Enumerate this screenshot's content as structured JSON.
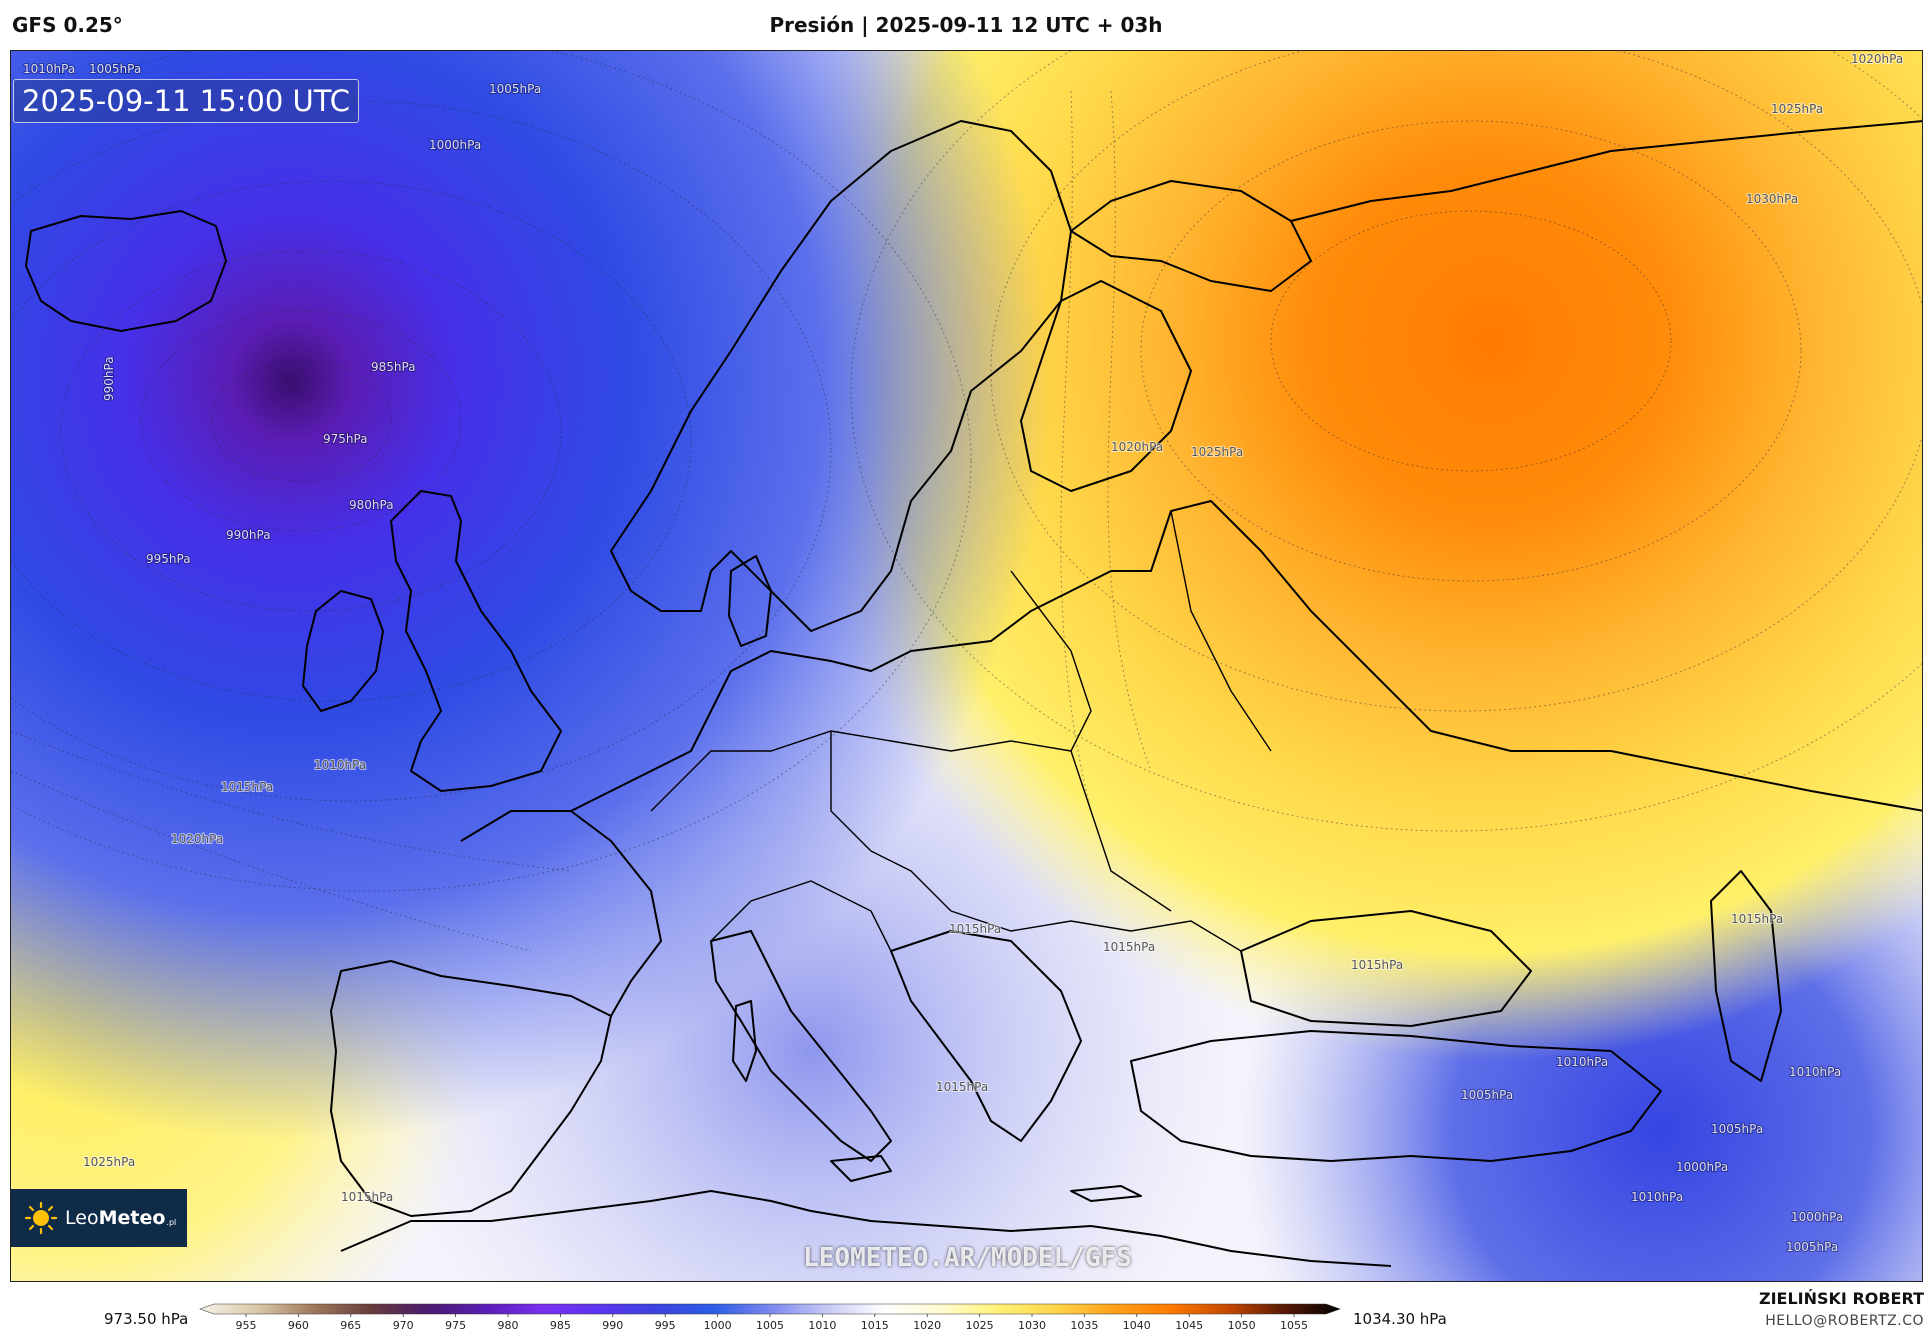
{
  "header": {
    "model": "GFS 0.25°",
    "title": "Presión | 2025-09-11 12 UTC + 03h"
  },
  "map": {
    "valid_time": "2025-09-11 15:00 UTC",
    "watermark": "LEOMETEO.AR/MODEL/GFS",
    "logo": {
      "brand_light": "Leo",
      "brand_bold": "Meteo",
      "tld": ".pl",
      "icon": "sun-icon"
    },
    "isobar_labels": [
      "1010hPa",
      "1005hPa",
      "1005hPa",
      "1000hPa",
      "990hPa",
      "985hPa",
      "975hPa",
      "980hPa",
      "990hPa",
      "995hPa",
      "1010hPa",
      "1015hPa",
      "1020hPa",
      "1025hPa",
      "1015hPa",
      "1020hPa",
      "1025hPa",
      "1030hPa",
      "1020hPa",
      "1025hPa",
      "1015hPa",
      "1015hPa",
      "1015hPa",
      "1015hPa",
      "1015hPa",
      "1010hPa",
      "1010hPa",
      "1005hPa",
      "1005hPa",
      "1000hPa",
      "1010hPa",
      "1000hPa",
      "1005hPa"
    ]
  },
  "colorbar": {
    "min_label": "973.50 hPa",
    "max_label": "1034.30 hPa",
    "ticks": [
      "955",
      "960",
      "965",
      "970",
      "975",
      "980",
      "985",
      "990",
      "995",
      "1000",
      "1005",
      "1010",
      "1015",
      "1020",
      "1025",
      "1030",
      "1035",
      "1040",
      "1045",
      "1050",
      "1055"
    ],
    "colors": [
      "#f7f3e8",
      "#d9c8a8",
      "#a0785a",
      "#6a3b3c",
      "#4a1a6e",
      "#5a1db5",
      "#7a2ff0",
      "#5b35f0",
      "#3c43e0",
      "#2c5ce6",
      "#7b88ee",
      "#c6c9f5",
      "#ffffff",
      "#fffbd0",
      "#fff176",
      "#ffd54a",
      "#ffa31a",
      "#ff7b00",
      "#c84b00",
      "#5a1a05",
      "#000000"
    ]
  },
  "footer": {
    "author": "ZIELIŃSKI ROBERT",
    "email": "HELLO@ROBERTZ.CO"
  }
}
